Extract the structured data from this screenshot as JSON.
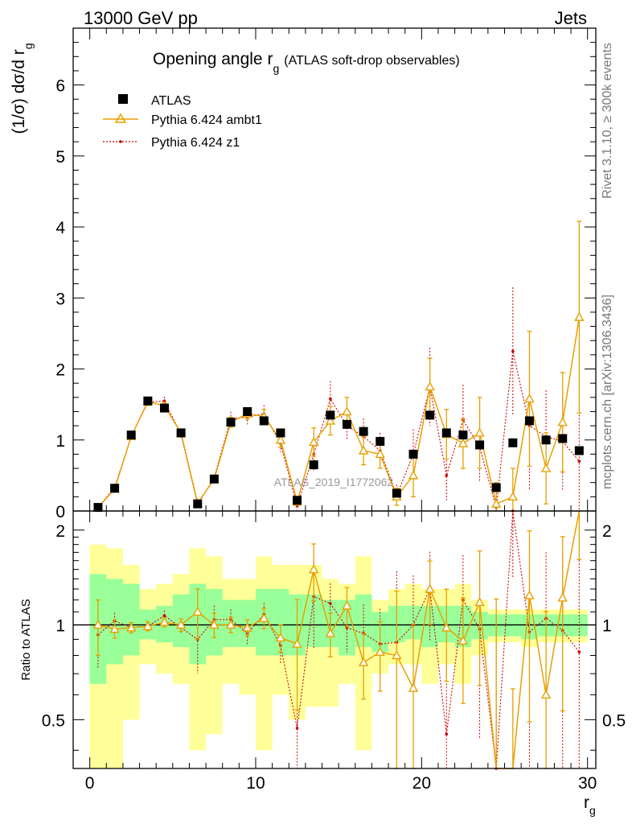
{
  "header": {
    "left": "13000 GeV pp",
    "right": "Jets"
  },
  "side_labels": {
    "rivet": "Rivet 3.1.10, ≥ 300k events",
    "mcplots": "mcplots.cern.ch [arXiv:1306.3436]"
  },
  "colors": {
    "data": "#000000",
    "ambt1": "#e8a000",
    "z1": "#cc0000",
    "band_green": "#99ff99",
    "band_yellow": "#ffff99"
  },
  "chart_data": {
    "type": "line",
    "title": "Opening angle r",
    "title_sub": "g",
    "title_suffix": "(ATLAS soft-drop observables)",
    "watermark": "ATLAS_2019_I1772062",
    "ylabel": "(1/σ) dσ/d r",
    "ylabel_sub": "g",
    "xlabel": "r",
    "xlabel_sub": "g",
    "ratio_ylabel": "Ratio to ATLAS",
    "xlim": [
      -1,
      30.5
    ],
    "ylim": [
      0,
      6.8
    ],
    "ratio_ylim": [
      0.35,
      2.3
    ],
    "x_ticks": [
      0,
      10,
      20,
      30
    ],
    "x_tick_labels": [
      "0",
      "10",
      "20",
      "30"
    ],
    "y_ticks": [
      0,
      1,
      2,
      3,
      4,
      5,
      6
    ],
    "y_tick_labels": [
      "0",
      "1",
      "2",
      "3",
      "4",
      "5",
      "6"
    ],
    "ratio_ticks": [
      0.5,
      1,
      2
    ],
    "ratio_tick_labels": [
      "0.5",
      "1",
      "2"
    ],
    "legend": [
      "ATLAS",
      "Pythia 6.424 ambt1",
      "Pythia 6.424 z1"
    ],
    "x": [
      0.5,
      1.5,
      2.5,
      3.5,
      4.5,
      5.5,
      6.5,
      7.5,
      8.5,
      9.5,
      10.5,
      11.5,
      12.5,
      13.5,
      14.5,
      15.5,
      16.5,
      17.5,
      18.5,
      19.5,
      20.5,
      21.5,
      22.5,
      23.5,
      24.5,
      25.5,
      26.5,
      27.5,
      28.5,
      29.5
    ],
    "series": [
      {
        "name": "ATLAS",
        "values": [
          0.05,
          0.32,
          1.07,
          1.55,
          1.45,
          1.1,
          0.1,
          0.45,
          1.25,
          1.4,
          1.27,
          1.1,
          0.15,
          0.65,
          1.35,
          1.22,
          1.12,
          0.98,
          0.25,
          0.8,
          1.35,
          1.1,
          1.07,
          0.93,
          0.33,
          0.96,
          1.27,
          1.0,
          1.02,
          0.85
        ]
      },
      {
        "name": "Pythia 6.424 ambt1",
        "values": [
          0.05,
          0.31,
          1.05,
          1.54,
          1.48,
          1.1,
          0.11,
          0.45,
          1.25,
          1.37,
          1.33,
          1.0,
          0.13,
          0.97,
          1.27,
          1.4,
          0.85,
          0.8,
          0.2,
          0.5,
          1.75,
          1.08,
          0.95,
          1.1,
          0.1,
          0.2,
          1.58,
          0.6,
          1.25,
          2.73
        ],
        "errors": [
          0.01,
          0.02,
          0.04,
          0.05,
          0.05,
          0.05,
          0.02,
          0.04,
          0.07,
          0.08,
          0.1,
          0.1,
          0.05,
          0.2,
          0.2,
          0.2,
          0.2,
          0.2,
          0.12,
          0.3,
          0.4,
          0.35,
          0.35,
          0.5,
          0.3,
          0.4,
          0.95,
          0.5,
          0.7,
          1.35
        ]
      },
      {
        "name": "Pythia 6.424 z1",
        "values": [
          0.05,
          0.33,
          1.05,
          1.53,
          1.55,
          1.08,
          0.09,
          0.47,
          1.3,
          1.32,
          1.37,
          0.95,
          0.07,
          0.8,
          1.58,
          1.2,
          1.05,
          0.85,
          0.22,
          0.8,
          1.75,
          0.5,
          1.28,
          0.9,
          0.05,
          2.25,
          1.2,
          1.05,
          0.98,
          0.7
        ],
        "errors": [
          0.01,
          0.02,
          0.04,
          0.05,
          0.06,
          0.05,
          0.02,
          0.05,
          0.1,
          0.1,
          0.12,
          0.12,
          0.05,
          0.25,
          0.25,
          0.2,
          0.25,
          0.25,
          0.15,
          0.35,
          0.55,
          0.35,
          0.5,
          0.5,
          0.3,
          0.9,
          0.9,
          0.65,
          0.7,
          1.2
        ]
      }
    ],
    "ratio_band_green": [
      [
        0.65,
        1.45
      ],
      [
        0.75,
        1.4
      ],
      [
        0.8,
        1.35
      ],
      [
        0.9,
        1.12
      ],
      [
        0.88,
        1.15
      ],
      [
        0.85,
        1.25
      ],
      [
        0.75,
        1.35
      ],
      [
        0.8,
        1.3
      ],
      [
        0.85,
        1.2
      ],
      [
        0.85,
        1.2
      ],
      [
        0.8,
        1.3
      ],
      [
        0.8,
        1.3
      ],
      [
        0.8,
        1.25
      ],
      [
        0.85,
        1.25
      ],
      [
        0.85,
        1.2
      ],
      [
        0.8,
        1.2
      ],
      [
        0.85,
        1.25
      ],
      [
        0.82,
        1.1
      ],
      [
        0.88,
        1.15
      ],
      [
        0.9,
        1.15
      ],
      [
        0.85,
        1.15
      ],
      [
        0.88,
        1.15
      ],
      [
        0.85,
        1.15
      ],
      [
        0.9,
        1.1
      ],
      [
        0.92,
        1.08
      ],
      [
        0.92,
        1.08
      ],
      [
        0.9,
        1.08
      ],
      [
        0.92,
        1.08
      ],
      [
        0.92,
        1.08
      ],
      [
        0.92,
        1.08
      ]
    ],
    "ratio_band_yellow": [
      [
        0.3,
        1.8
      ],
      [
        0.35,
        1.75
      ],
      [
        0.5,
        1.55
      ],
      [
        0.75,
        1.3
      ],
      [
        0.7,
        1.35
      ],
      [
        0.65,
        1.45
      ],
      [
        0.4,
        1.75
      ],
      [
        0.45,
        1.65
      ],
      [
        0.65,
        1.4
      ],
      [
        0.6,
        1.4
      ],
      [
        0.4,
        1.65
      ],
      [
        0.6,
        1.55
      ],
      [
        0.5,
        1.55
      ],
      [
        0.55,
        1.55
      ],
      [
        0.55,
        1.4
      ],
      [
        0.65,
        1.35
      ],
      [
        0.4,
        1.65
      ],
      [
        0.7,
        1.2
      ],
      [
        0.75,
        1.3
      ],
      [
        0.75,
        1.35
      ],
      [
        0.65,
        1.3
      ],
      [
        0.75,
        1.3
      ],
      [
        0.65,
        1.35
      ],
      [
        0.8,
        1.2
      ],
      [
        0.88,
        1.12
      ],
      [
        0.88,
        1.12
      ],
      [
        0.85,
        1.12
      ],
      [
        0.88,
        1.12
      ],
      [
        0.88,
        1.12
      ],
      [
        0.88,
        1.12
      ]
    ],
    "ratio_ambt1": [
      1.0,
      0.97,
      0.98,
      0.99,
      1.02,
      1.0,
      1.1,
      1.0,
      1.0,
      0.98,
      1.05,
      0.91,
      0.87,
      1.5,
      0.94,
      1.15,
      0.76,
      0.82,
      0.8,
      0.63,
      1.3,
      0.98,
      0.89,
      1.18,
      0.3,
      0.21,
      1.24,
      0.6,
      1.22,
      3.2
    ],
    "ratio_z1": [
      0.93,
      1.03,
      0.98,
      0.99,
      1.07,
      0.98,
      0.9,
      1.04,
      1.04,
      0.94,
      1.08,
      0.86,
      0.47,
      1.23,
      1.17,
      0.98,
      0.94,
      0.87,
      0.88,
      1.0,
      1.3,
      0.45,
      1.2,
      0.97,
      0.15,
      2.34,
      0.95,
      1.05,
      0.96,
      0.82
    ]
  }
}
